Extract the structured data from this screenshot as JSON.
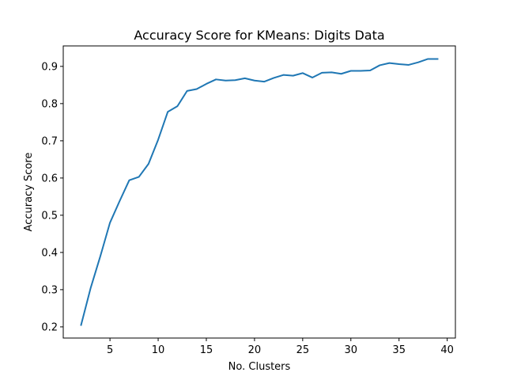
{
  "chart_data": {
    "type": "line",
    "title": "Accuracy Score for KMeans: Digits Data",
    "xlabel": "No. Clusters",
    "ylabel": "Accuracy Score",
    "xlim": [
      0.15,
      40.85
    ],
    "ylim": [
      0.17,
      0.955
    ],
    "xticks": [
      5,
      10,
      15,
      20,
      25,
      30,
      35,
      40
    ],
    "yticks": [
      0.2,
      0.3,
      0.4,
      0.5,
      0.6,
      0.7,
      0.8,
      0.9
    ],
    "grid": false,
    "series": [
      {
        "color": "#1f77b4",
        "x": [
          2,
          3,
          4,
          5,
          6,
          7,
          8,
          9,
          10,
          11,
          12,
          13,
          14,
          15,
          16,
          17,
          18,
          19,
          20,
          21,
          22,
          23,
          24,
          25,
          26,
          27,
          28,
          29,
          30,
          31,
          32,
          33,
          34,
          35,
          36,
          37,
          38,
          39
        ],
        "y": [
          0.205,
          0.305,
          0.39,
          0.48,
          0.538,
          0.594,
          0.603,
          0.638,
          0.703,
          0.778,
          0.793,
          0.834,
          0.839,
          0.853,
          0.865,
          0.862,
          0.863,
          0.868,
          0.862,
          0.859,
          0.869,
          0.877,
          0.875,
          0.882,
          0.87,
          0.883,
          0.884,
          0.88,
          0.888,
          0.888,
          0.889,
          0.903,
          0.909,
          0.906,
          0.904,
          0.911,
          0.92,
          0.92
        ]
      }
    ]
  }
}
